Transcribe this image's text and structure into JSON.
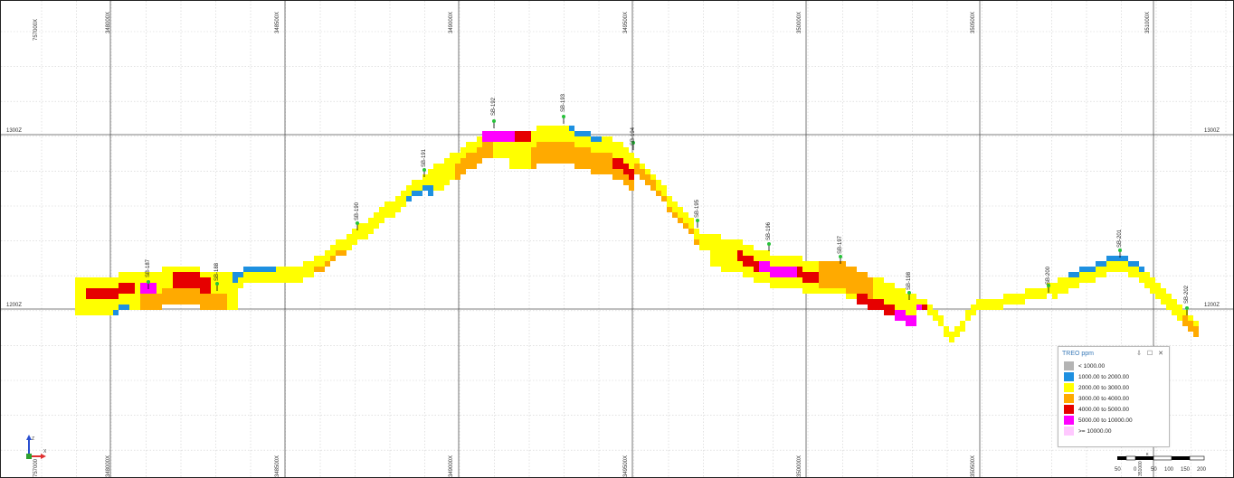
{
  "x_top_labels": [
    "757000X",
    "348000X",
    "348500X",
    "349000X",
    "349500X",
    "350000X",
    "350500X",
    "351000X"
  ],
  "x_bottom_labels": [
    "757000",
    "348000X",
    "348500X",
    "349000X",
    "349500X",
    "350000X",
    "350500X",
    "351000X"
  ],
  "z_labels": {
    "upper_left": "1300Z",
    "upper_right": "1300Z",
    "lower_left": "1200Z",
    "lower_right": "1200Z"
  },
  "drillholes": [
    "SB-187",
    "SB-188",
    "SB-190",
    "SB-191",
    "SB-192",
    "SB-193",
    "SB-194",
    "SB-195",
    "SB-196",
    "SB-197",
    "SB-198",
    "SB-200",
    "SB-201",
    "SB-202"
  ],
  "legend": {
    "title": "TREO ppm",
    "controls": "⇩ ☐ ✕",
    "items": [
      {
        "label": "< 1000.00",
        "color": "#b4b4b4"
      },
      {
        "label": "1000.00 to 2000.00",
        "color": "#1e90e0"
      },
      {
        "label": "2000.00 to 3000.00",
        "color": "#ffff00"
      },
      {
        "label": "3000.00 to 4000.00",
        "color": "#ffaa00"
      },
      {
        "label": "4000.00 to 5000.00",
        "color": "#e60000"
      },
      {
        "label": "5000.00 to 10000.00",
        "color": "#ff00ff"
      },
      {
        "label": ">= 10000.00",
        "color": "#ffc8ff"
      }
    ]
  },
  "scale": {
    "ticks": [
      "50",
      "0",
      "50",
      "100",
      "150",
      "200"
    ],
    "unit_mark": "k",
    "center_label": "351000"
  },
  "axis_icon": {
    "x": "X",
    "z": "Z"
  }
}
